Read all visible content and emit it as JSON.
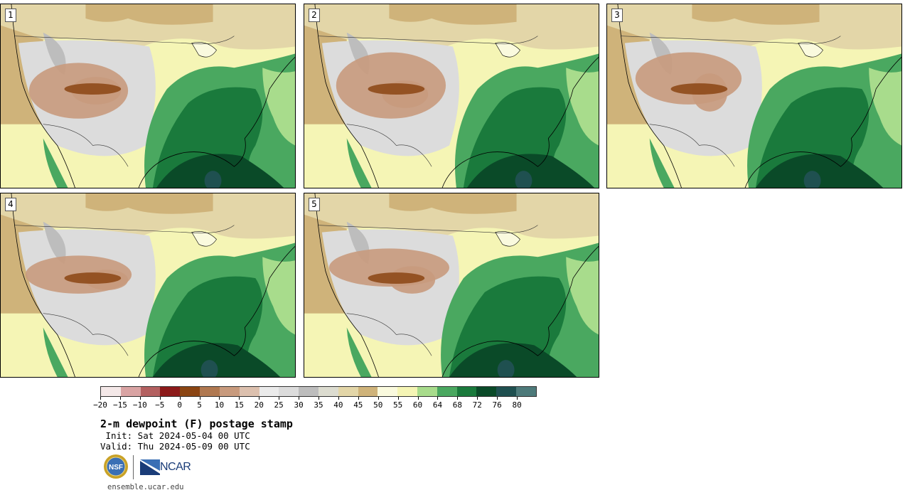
{
  "panels": [
    {
      "label": "1"
    },
    {
      "label": "2"
    },
    {
      "label": "3"
    },
    {
      "label": "4"
    },
    {
      "label": "5"
    }
  ],
  "colorbar": {
    "colors": [
      "#f4e8e8",
      "#d9a3a3",
      "#b36060",
      "#8c1a1a",
      "#8b4513",
      "#b07850",
      "#c89a7d",
      "#dcc0ae",
      "#ebebeb",
      "#dcdcdc",
      "#bdbdbd",
      "#dcdcd0",
      "#e3d6a8",
      "#cfb37a",
      "#fafade",
      "#f5f5b5",
      "#a8dc8c",
      "#4aa860",
      "#1a7a3c",
      "#0a4a28",
      "#1f5050",
      "#4d7a7a"
    ],
    "tick_labels": [
      "−20",
      "−15",
      "−10",
      "−5",
      "0",
      "5",
      "10",
      "15",
      "20",
      "25",
      "30",
      "35",
      "40",
      "45",
      "50",
      "55",
      "60",
      "64",
      "68",
      "72",
      "76",
      "80"
    ]
  },
  "title": "2-m dewpoint (F) postage stamp",
  "init_line": " Init: Sat 2024-05-04 00 UTC",
  "valid_line": "Valid: Thu 2024-05-09 00 UTC",
  "logos": {
    "nsf": "NSF",
    "ncar": "NCAR"
  },
  "url": "ensemble.ucar.edu"
}
